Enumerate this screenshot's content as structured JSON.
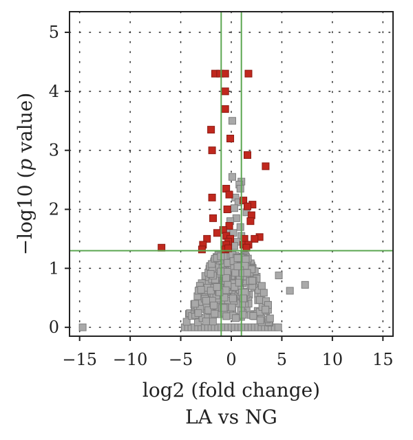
{
  "chart_data": {
    "type": "scatter",
    "title": "",
    "subtitle": "LA vs NG",
    "xlabel": "log2 (fold change)",
    "ylabel": "−log10 (p value)",
    "xlim": [
      -16,
      16
    ],
    "ylim": [
      -0.15,
      5.35
    ],
    "xticks": [
      -15,
      -10,
      -5,
      0,
      5,
      10,
      15
    ],
    "xtick_labels": [
      "−15",
      "−10",
      "−5",
      "0",
      "5",
      "10",
      "15"
    ],
    "yticks": [
      0,
      1,
      2,
      3,
      4,
      5
    ],
    "ytick_labels": [
      "0",
      "1",
      "2",
      "3",
      "4",
      "5"
    ],
    "grid": "dotted",
    "thresholds": {
      "x": [
        -1,
        1
      ],
      "y": 1.3,
      "color": "#5aa650"
    },
    "series": [
      {
        "color": "#c0281e",
        "points": [
          [
            -1.6,
            4.3
          ],
          [
            -1.1,
            4.3
          ],
          [
            -0.6,
            4.3
          ],
          [
            1.7,
            4.3
          ],
          [
            -0.6,
            4.0
          ],
          [
            -0.6,
            3.7
          ],
          [
            -2.0,
            3.35
          ],
          [
            -0.1,
            3.2
          ],
          [
            -1.9,
            3.0
          ],
          [
            1.6,
            2.92
          ],
          [
            3.4,
            2.73
          ],
          [
            -0.5,
            2.35
          ],
          [
            -0.2,
            2.25
          ],
          [
            -1.9,
            2.2
          ],
          [
            1.2,
            2.15
          ],
          [
            2.1,
            2.08
          ],
          [
            1.6,
            2.05
          ],
          [
            -0.4,
            2.0
          ],
          [
            2.0,
            1.9
          ],
          [
            -1.8,
            1.85
          ],
          [
            1.9,
            1.8
          ],
          [
            -0.2,
            1.72
          ],
          [
            -0.8,
            1.65
          ],
          [
            -1.4,
            1.6
          ],
          [
            -0.5,
            1.55
          ],
          [
            2.8,
            1.53
          ],
          [
            -2.4,
            1.5
          ],
          [
            -0.1,
            1.5
          ],
          [
            1.3,
            1.5
          ],
          [
            2.3,
            1.5
          ],
          [
            -0.3,
            1.45
          ],
          [
            -2.8,
            1.4
          ],
          [
            -0.5,
            1.4
          ],
          [
            1.2,
            1.4
          ],
          [
            1.7,
            1.4
          ],
          [
            -6.9,
            1.35
          ],
          [
            -2.9,
            1.32
          ],
          [
            -0.6,
            1.32
          ],
          [
            1.5,
            1.35
          ],
          [
            -0.3,
            1.34
          ]
        ]
      },
      {
        "color": "#a9a9a9",
        "points": [
          [
            -14.7,
            0.0
          ],
          [
            7.3,
            0.72
          ],
          [
            5.8,
            0.62
          ],
          [
            4.7,
            0.88
          ],
          [
            0.1,
            3.5
          ],
          [
            1.0,
            2.47
          ],
          [
            0.8,
            2.42
          ],
          [
            0.9,
            2.35
          ],
          [
            0.1,
            2.55
          ],
          [
            0.4,
            2.2
          ],
          [
            0.7,
            2.12
          ],
          [
            0.3,
            2.02
          ],
          [
            1.5,
            1.95
          ],
          [
            0.5,
            1.85
          ],
          [
            -0.1,
            1.8
          ],
          [
            0.9,
            1.7
          ],
          [
            -0.4,
            1.62
          ],
          [
            0.2,
            1.6
          ],
          [
            1.0,
            1.55
          ],
          [
            -0.2,
            1.5
          ],
          [
            0.5,
            1.45
          ],
          [
            -0.7,
            1.4
          ],
          [
            0.3,
            1.38
          ]
        ]
      }
    ]
  }
}
